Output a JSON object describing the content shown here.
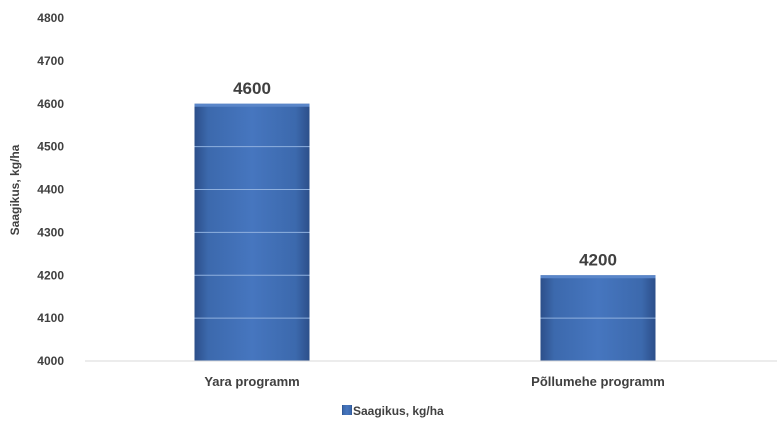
{
  "chart_data": {
    "type": "bar",
    "categories": [
      "Yara programm",
      "Põllumehe programm"
    ],
    "series": [
      {
        "name": "Saagikus, kg/ha",
        "values": [
          4600,
          4200
        ]
      }
    ],
    "data_labels": [
      "4600",
      "4200"
    ],
    "ylabel": "Saagikus, kg/ha",
    "ylim": [
      4000,
      4800
    ],
    "yticks": [
      4000,
      4100,
      4200,
      4300,
      4400,
      4500,
      4600,
      4700,
      4800
    ],
    "grid": "inside-bars-only",
    "legend": "bottom-center",
    "colors": {
      "bar": "#3f6fb8",
      "bar_dark": "#2c4f8a",
      "bar_light": "#5a86c9",
      "text": "#404040",
      "axis": "#d9d9d9"
    }
  }
}
